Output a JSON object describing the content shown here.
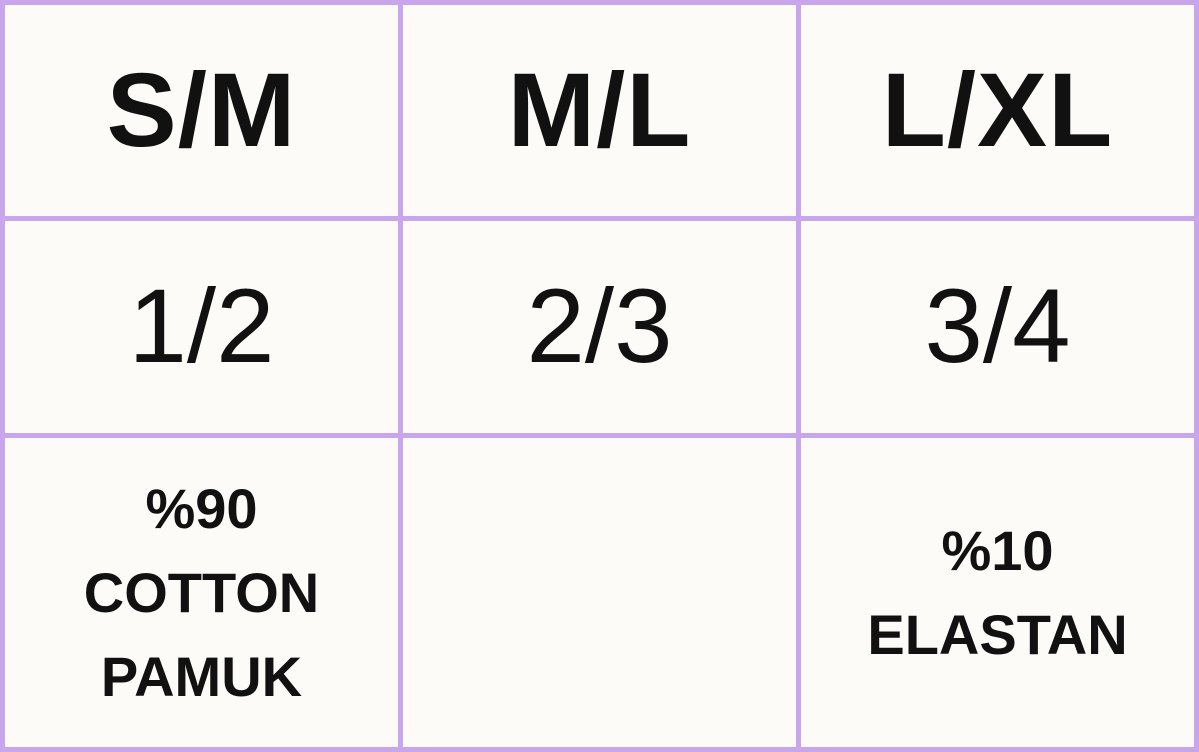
{
  "chart_data": {
    "type": "table",
    "columns": [
      "S/M",
      "M/L",
      "L/XL"
    ],
    "rows": [
      [
        "1/2",
        "2/3",
        "3/4"
      ],
      [
        "%90\nCOTTON\nPAMUK",
        "",
        "%10\nELASTAN"
      ]
    ]
  },
  "colors": {
    "grid_border": "#c7a6ec",
    "cell_background": "#fcfbf8",
    "text": "#111111"
  }
}
